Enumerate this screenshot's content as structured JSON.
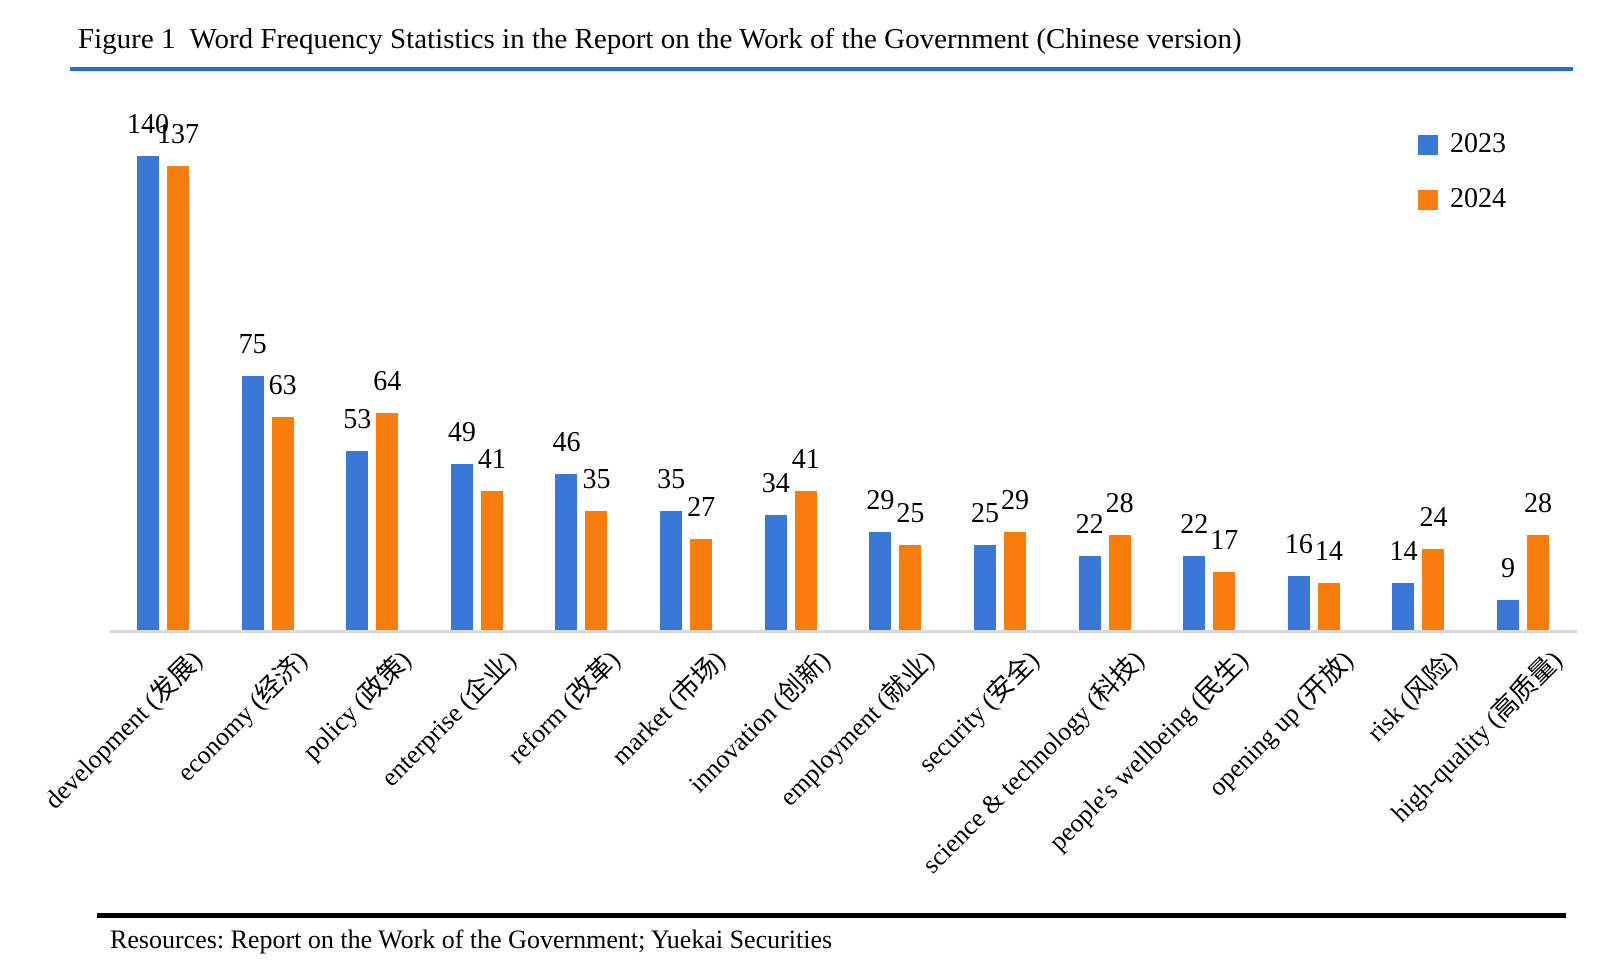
{
  "title": "Figure 1  Word Frequency Statistics in the Report on the Work of the Government (Chinese version)",
  "footer": {
    "source_text": "Resources: Report on the Work of the Government; Yuekai Securities"
  },
  "colors": {
    "series_2023": "#3A78D8",
    "series_2024": "#F87D0D",
    "title_rule": "#2170D6",
    "axis_line": "#D9D9D9",
    "footer_rule": "#000000"
  },
  "legend": {
    "position": "top-right",
    "entries": [
      {
        "label": "2023",
        "color": "#3A78D8"
      },
      {
        "label": "2024",
        "color": "#F87D0D"
      }
    ]
  },
  "chart_data": {
    "type": "bar",
    "title": "Figure 1  Word Frequency Statistics in the Report on the Work of the Government (Chinese version)",
    "xlabel": "",
    "ylabel": "",
    "ylim": [
      0,
      145
    ],
    "grid": false,
    "data_labels": true,
    "legend_position": "top-right",
    "categories": [
      "development (发展)",
      "economy (经济)",
      "policy (政策)",
      "enterprise (企业)",
      "reform (改革)",
      "market (市场)",
      "innovation (创新)",
      "employment (就业)",
      "security (安全)",
      "science & technology (科技)",
      "people's wellbeing (民生)",
      "opening up (开放)",
      "risk (风险)",
      "high-quality (高质量)"
    ],
    "series": [
      {
        "name": "2023",
        "color": "#3A78D8",
        "values": [
          140,
          75,
          53,
          49,
          46,
          35,
          34,
          29,
          25,
          22,
          22,
          16,
          14,
          9
        ]
      },
      {
        "name": "2024",
        "color": "#F87D0D",
        "values": [
          137,
          63,
          64,
          41,
          35,
          27,
          41,
          25,
          29,
          28,
          17,
          14,
          24,
          28
        ]
      }
    ]
  }
}
